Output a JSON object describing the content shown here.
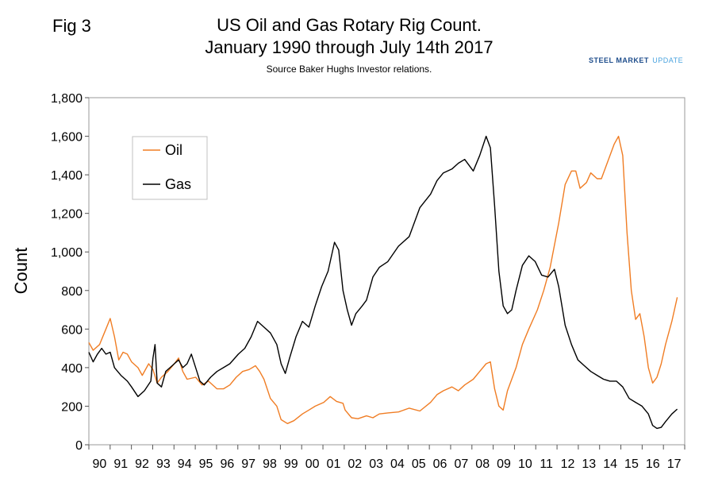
{
  "figure_label": "Fig 3",
  "brand": {
    "name_bold": "STEEL MARKET",
    "name_light": "UPDATE",
    "colors": [
      "#1f4e8c",
      "#4aa3df"
    ]
  },
  "chart_data": {
    "type": "line",
    "title_line1": "US Oil and Gas Rotary Rig Count.",
    "title_line2": "January 1990 through July 14th 2017",
    "subtitle": "Source Baker Hughs Investor relations.",
    "xlabel": "",
    "ylabel": "Count",
    "xlim": [
      1990,
      2017.9
    ],
    "ylim": [
      0,
      1800
    ],
    "yticks": [
      0,
      200,
      400,
      600,
      800,
      1000,
      1200,
      1400,
      1600,
      1800
    ],
    "ytick_labels": [
      "0",
      "200",
      "400",
      "600",
      "800",
      "1,000",
      "1,200",
      "1,400",
      "1,600",
      "1,800"
    ],
    "x_tick_labels": [
      "90",
      "91",
      "92",
      "93",
      "94",
      "95",
      "96",
      "97",
      "98",
      "99",
      "00",
      "01",
      "02",
      "03",
      "04",
      "05",
      "06",
      "07",
      "08",
      "09",
      "10",
      "11",
      "12",
      "13",
      "14",
      "15",
      "16",
      "17"
    ],
    "legend_position": "upper-left",
    "series": [
      {
        "name": "Oil",
        "color": "#f07d24",
        "points": [
          [
            1990.0,
            530
          ],
          [
            1990.2,
            490
          ],
          [
            1990.5,
            520
          ],
          [
            1990.8,
            600
          ],
          [
            1991.0,
            655
          ],
          [
            1991.2,
            560
          ],
          [
            1991.4,
            440
          ],
          [
            1991.6,
            480
          ],
          [
            1991.8,
            470
          ],
          [
            1992.0,
            430
          ],
          [
            1992.3,
            400
          ],
          [
            1992.5,
            360
          ],
          [
            1992.8,
            420
          ],
          [
            1993.0,
            390
          ],
          [
            1993.2,
            320
          ],
          [
            1993.4,
            350
          ],
          [
            1993.7,
            380
          ],
          [
            1994.0,
            420
          ],
          [
            1994.2,
            450
          ],
          [
            1994.4,
            380
          ],
          [
            1994.6,
            340
          ],
          [
            1995.0,
            350
          ],
          [
            1995.3,
            310
          ],
          [
            1995.6,
            330
          ],
          [
            1996.0,
            290
          ],
          [
            1996.3,
            290
          ],
          [
            1996.6,
            310
          ],
          [
            1996.9,
            350
          ],
          [
            1997.2,
            380
          ],
          [
            1997.5,
            390
          ],
          [
            1997.8,
            410
          ],
          [
            1998.0,
            380
          ],
          [
            1998.2,
            340
          ],
          [
            1998.5,
            240
          ],
          [
            1998.8,
            200
          ],
          [
            1999.0,
            130
          ],
          [
            1999.3,
            110
          ],
          [
            1999.6,
            125
          ],
          [
            2000.0,
            160
          ],
          [
            2000.3,
            180
          ],
          [
            2000.6,
            200
          ],
          [
            2001.0,
            220
          ],
          [
            2001.3,
            250
          ],
          [
            2001.6,
            225
          ],
          [
            2001.9,
            215
          ],
          [
            2002.0,
            180
          ],
          [
            2002.3,
            140
          ],
          [
            2002.6,
            135
          ],
          [
            2003.0,
            150
          ],
          [
            2003.3,
            140
          ],
          [
            2003.6,
            160
          ],
          [
            2004.0,
            165
          ],
          [
            2004.5,
            170
          ],
          [
            2005.0,
            190
          ],
          [
            2005.5,
            175
          ],
          [
            2006.0,
            220
          ],
          [
            2006.3,
            260
          ],
          [
            2006.6,
            280
          ],
          [
            2007.0,
            300
          ],
          [
            2007.3,
            280
          ],
          [
            2007.6,
            310
          ],
          [
            2008.0,
            340
          ],
          [
            2008.3,
            380
          ],
          [
            2008.6,
            420
          ],
          [
            2008.8,
            430
          ],
          [
            2009.0,
            290
          ],
          [
            2009.2,
            200
          ],
          [
            2009.4,
            180
          ],
          [
            2009.6,
            280
          ],
          [
            2010.0,
            400
          ],
          [
            2010.3,
            520
          ],
          [
            2010.6,
            600
          ],
          [
            2011.0,
            700
          ],
          [
            2011.3,
            800
          ],
          [
            2011.6,
            920
          ],
          [
            2012.0,
            1150
          ],
          [
            2012.3,
            1350
          ],
          [
            2012.6,
            1420
          ],
          [
            2012.8,
            1420
          ],
          [
            2013.0,
            1330
          ],
          [
            2013.3,
            1360
          ],
          [
            2013.5,
            1410
          ],
          [
            2013.8,
            1380
          ],
          [
            2014.0,
            1380
          ],
          [
            2014.3,
            1470
          ],
          [
            2014.6,
            1560
          ],
          [
            2014.8,
            1600
          ],
          [
            2015.0,
            1500
          ],
          [
            2015.2,
            1100
          ],
          [
            2015.4,
            800
          ],
          [
            2015.6,
            650
          ],
          [
            2015.8,
            680
          ],
          [
            2016.0,
            560
          ],
          [
            2016.2,
            400
          ],
          [
            2016.4,
            320
          ],
          [
            2016.6,
            350
          ],
          [
            2016.8,
            420
          ],
          [
            2017.0,
            520
          ],
          [
            2017.3,
            640
          ],
          [
            2017.55,
            765
          ]
        ]
      },
      {
        "name": "Gas",
        "color": "#000000",
        "points": [
          [
            1990.0,
            480
          ],
          [
            1990.2,
            430
          ],
          [
            1990.4,
            470
          ],
          [
            1990.6,
            500
          ],
          [
            1990.8,
            470
          ],
          [
            1991.0,
            480
          ],
          [
            1991.2,
            400
          ],
          [
            1991.5,
            360
          ],
          [
            1991.8,
            330
          ],
          [
            1992.0,
            300
          ],
          [
            1992.3,
            250
          ],
          [
            1992.6,
            280
          ],
          [
            1992.9,
            330
          ],
          [
            1993.0,
            450
          ],
          [
            1993.1,
            520
          ],
          [
            1993.2,
            320
          ],
          [
            1993.4,
            300
          ],
          [
            1993.6,
            380
          ],
          [
            1993.8,
            400
          ],
          [
            1994.0,
            420
          ],
          [
            1994.2,
            440
          ],
          [
            1994.4,
            400
          ],
          [
            1994.6,
            420
          ],
          [
            1994.8,
            470
          ],
          [
            1995.0,
            400
          ],
          [
            1995.2,
            330
          ],
          [
            1995.4,
            310
          ],
          [
            1995.7,
            350
          ],
          [
            1996.0,
            380
          ],
          [
            1996.3,
            400
          ],
          [
            1996.6,
            420
          ],
          [
            1997.0,
            470
          ],
          [
            1997.3,
            500
          ],
          [
            1997.6,
            560
          ],
          [
            1997.9,
            640
          ],
          [
            1998.2,
            610
          ],
          [
            1998.5,
            580
          ],
          [
            1998.8,
            520
          ],
          [
            1999.0,
            420
          ],
          [
            1999.2,
            370
          ],
          [
            1999.4,
            450
          ],
          [
            1999.7,
            560
          ],
          [
            2000.0,
            640
          ],
          [
            2000.3,
            610
          ],
          [
            2000.6,
            720
          ],
          [
            2000.9,
            820
          ],
          [
            2001.2,
            900
          ],
          [
            2001.5,
            1050
          ],
          [
            2001.7,
            1010
          ],
          [
            2001.9,
            800
          ],
          [
            2002.1,
            700
          ],
          [
            2002.3,
            620
          ],
          [
            2002.5,
            680
          ],
          [
            2002.8,
            720
          ],
          [
            2003.0,
            750
          ],
          [
            2003.3,
            870
          ],
          [
            2003.6,
            920
          ],
          [
            2004.0,
            950
          ],
          [
            2004.5,
            1030
          ],
          [
            2005.0,
            1080
          ],
          [
            2005.5,
            1230
          ],
          [
            2006.0,
            1300
          ],
          [
            2006.3,
            1370
          ],
          [
            2006.6,
            1410
          ],
          [
            2007.0,
            1430
          ],
          [
            2007.3,
            1460
          ],
          [
            2007.6,
            1480
          ],
          [
            2008.0,
            1420
          ],
          [
            2008.3,
            1500
          ],
          [
            2008.6,
            1600
          ],
          [
            2008.8,
            1540
          ],
          [
            2009.0,
            1240
          ],
          [
            2009.2,
            900
          ],
          [
            2009.4,
            720
          ],
          [
            2009.6,
            680
          ],
          [
            2009.8,
            700
          ],
          [
            2010.0,
            800
          ],
          [
            2010.3,
            930
          ],
          [
            2010.6,
            980
          ],
          [
            2010.9,
            950
          ],
          [
            2011.2,
            880
          ],
          [
            2011.5,
            870
          ],
          [
            2011.8,
            910
          ],
          [
            2012.0,
            820
          ],
          [
            2012.3,
            620
          ],
          [
            2012.6,
            520
          ],
          [
            2012.9,
            440
          ],
          [
            2013.2,
            410
          ],
          [
            2013.5,
            380
          ],
          [
            2013.8,
            360
          ],
          [
            2014.1,
            340
          ],
          [
            2014.4,
            330
          ],
          [
            2014.7,
            330
          ],
          [
            2015.0,
            300
          ],
          [
            2015.3,
            240
          ],
          [
            2015.6,
            220
          ],
          [
            2015.9,
            200
          ],
          [
            2016.2,
            160
          ],
          [
            2016.4,
            100
          ],
          [
            2016.6,
            85
          ],
          [
            2016.8,
            90
          ],
          [
            2017.0,
            120
          ],
          [
            2017.3,
            160
          ],
          [
            2017.55,
            185
          ]
        ]
      }
    ]
  }
}
